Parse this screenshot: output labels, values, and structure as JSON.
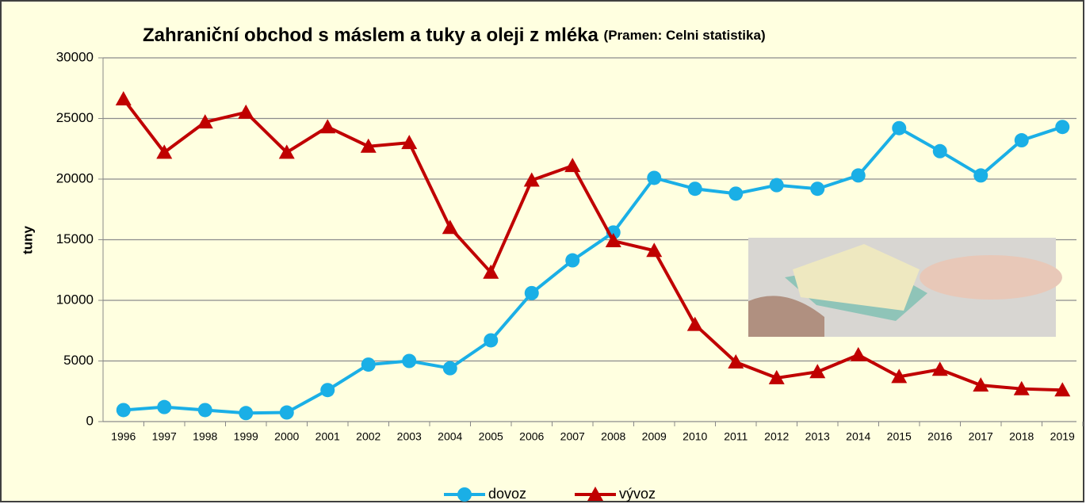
{
  "chart_data": {
    "type": "line",
    "title": "Zahraniční obchod s máslem a tuky a oleji z mléka",
    "subtitle": "(Pramen: Celni statistika)",
    "y_label": "tuny",
    "categories": [
      "1996",
      "1997",
      "1998",
      "1999",
      "2000",
      "2001",
      "2002",
      "2003",
      "2004",
      "2005",
      "2006",
      "2007",
      "2008",
      "2009",
      "2010",
      "2011",
      "2012",
      "2013",
      "2014",
      "2015",
      "2016",
      "2017",
      "2018",
      "2019"
    ],
    "series": [
      {
        "name": "dovoz",
        "color": "#1aafe6",
        "marker": "circle",
        "values": [
          950,
          1200,
          950,
          700,
          750,
          2600,
          4700,
          5000,
          4400,
          6700,
          10600,
          13300,
          15600,
          20100,
          19200,
          18800,
          19500,
          19200,
          20300,
          24200,
          22300,
          20300,
          23200,
          24300
        ]
      },
      {
        "name": "vývoz",
        "color": "#c00000",
        "marker": "triangle",
        "values": [
          26600,
          22200,
          24700,
          25500,
          22200,
          24300,
          22700,
          23000,
          16000,
          12300,
          19900,
          21100,
          14900,
          14100,
          8000,
          4900,
          3600,
          4100,
          5500,
          3700,
          4300,
          3000,
          2700,
          2600
        ]
      }
    ],
    "ylim": [
      0,
      30000
    ],
    "yticks": [
      0,
      5000,
      10000,
      15000,
      20000,
      25000,
      30000
    ],
    "grid": true,
    "legend": "bottom"
  }
}
